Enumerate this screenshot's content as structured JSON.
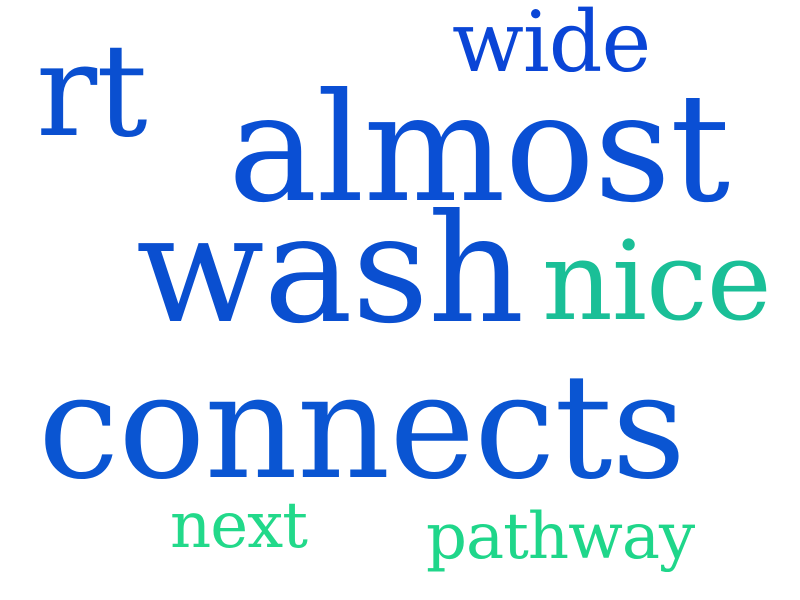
{
  "words": [
    {
      "id": "wide",
      "text": "wide",
      "color": "#0a45d6"
    },
    {
      "id": "rt",
      "text": "rt",
      "color": "#0a4fd0"
    },
    {
      "id": "almost",
      "text": "almost",
      "color": "#0a4fd4"
    },
    {
      "id": "wash",
      "text": "wash",
      "color": "#0a4fd0"
    },
    {
      "id": "nice",
      "text": "nice",
      "color": "#1abf97"
    },
    {
      "id": "connects",
      "text": "connects",
      "color": "#0a55d2"
    },
    {
      "id": "next",
      "text": "next",
      "color": "#22d98a"
    },
    {
      "id": "pathway",
      "text": "pathway",
      "color": "#1fd68a"
    }
  ]
}
